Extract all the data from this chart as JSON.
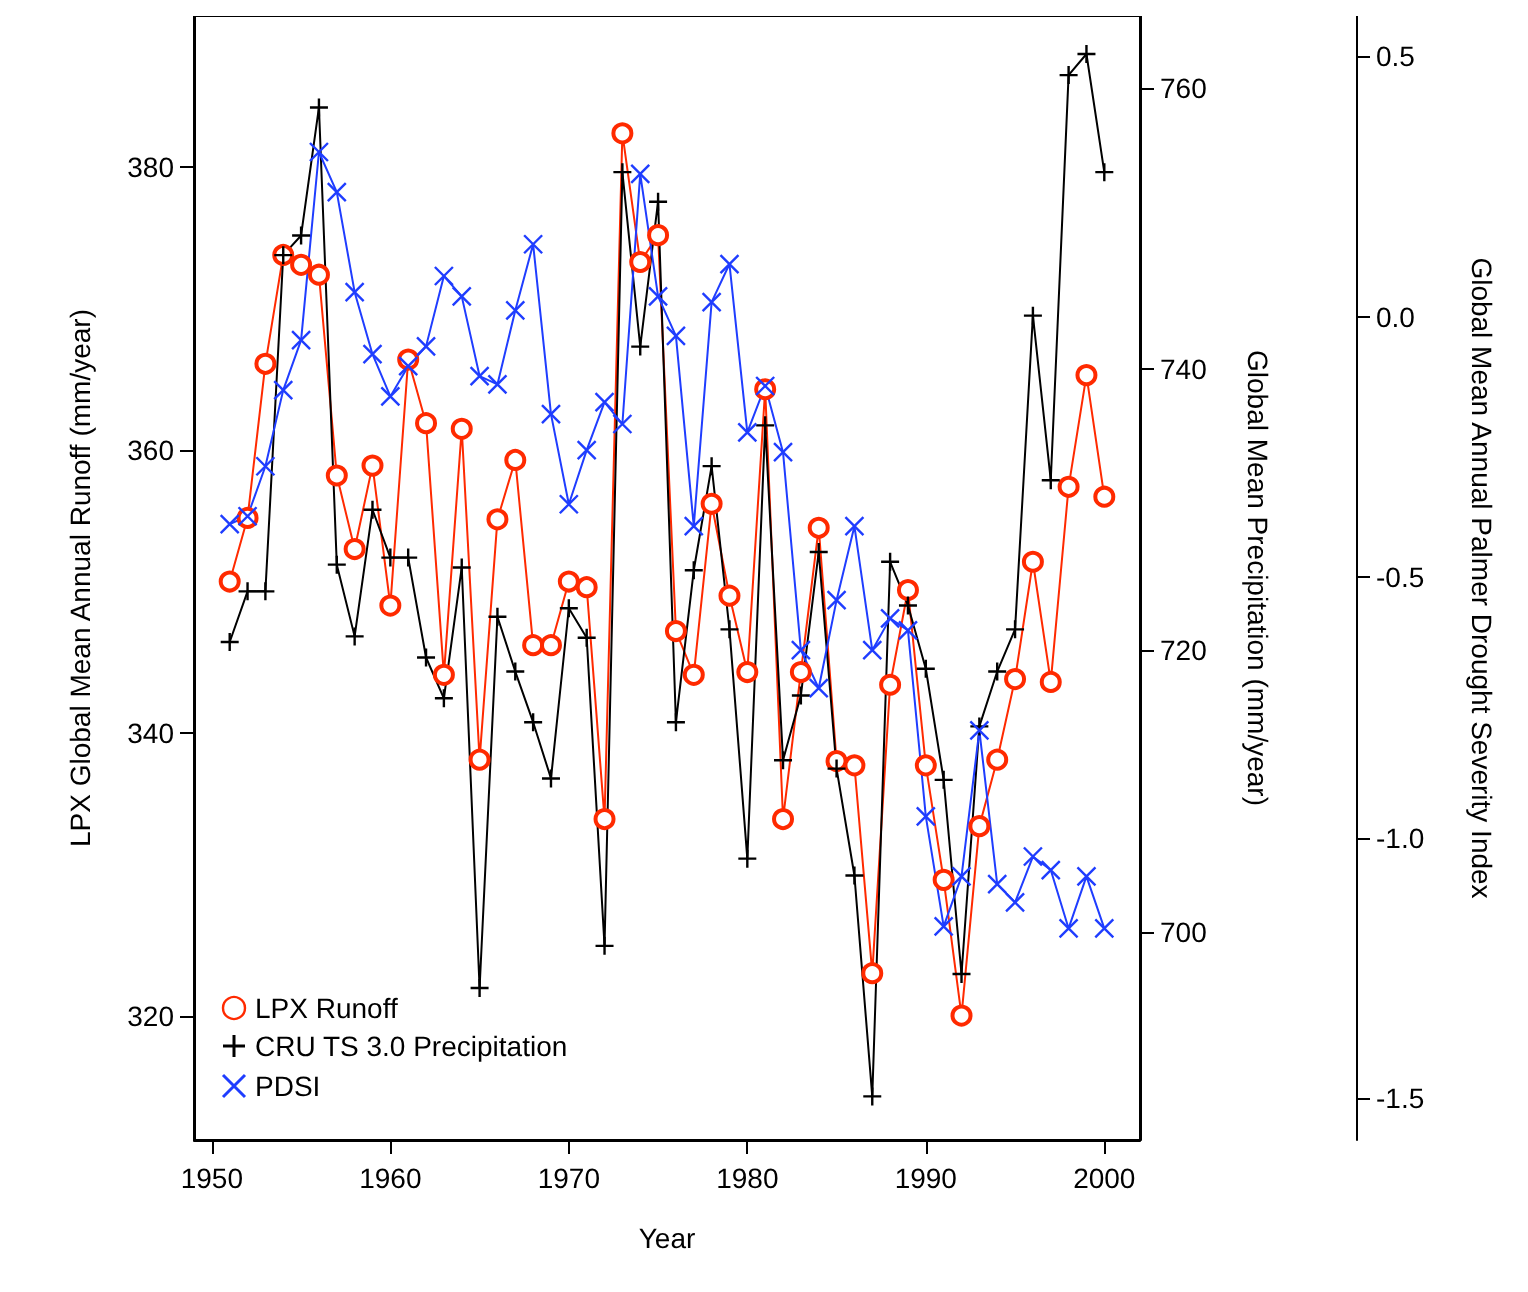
{
  "chart_data": {
    "type": "line",
    "xlabel": "Year",
    "ylabel": "LPX Global Mean Annual Runoff (mm/year)",
    "y2label": "Global Mean Precipitation (mm/year)",
    "y3label": "Global Mean Annual Palmer Drought Severity Index",
    "x": [
      1951,
      1952,
      1953,
      1954,
      1955,
      1956,
      1957,
      1958,
      1959,
      1960,
      1961,
      1962,
      1963,
      1964,
      1965,
      1966,
      1967,
      1968,
      1969,
      1970,
      1971,
      1972,
      1973,
      1974,
      1975,
      1976,
      1977,
      1978,
      1979,
      1980,
      1981,
      1982,
      1983,
      1984,
      1985,
      1986,
      1987,
      1988,
      1989,
      1990,
      1991,
      1992,
      1993,
      1994,
      1995,
      1996,
      1997,
      1998,
      1999,
      2000
    ],
    "xlim": [
      1949,
      2002
    ],
    "xticks": [
      1950,
      1960,
      1970,
      1980,
      1990,
      2000
    ],
    "ylim": [
      311.2,
      390.7
    ],
    "yticks": [
      320,
      340,
      360,
      380
    ],
    "y2lim": [
      685.2,
      765.1
    ],
    "y2ticks": [
      700,
      720,
      740,
      760
    ],
    "y3lim": [
      -1.58,
      0.577
    ],
    "y3ticks": [
      {
        "value": -1.5,
        "label": "-1.5"
      },
      {
        "value": -1,
        "label": "-1.0"
      },
      {
        "value": -0.5,
        "label": "-0.5"
      },
      {
        "value": 0,
        "label": "0.0"
      },
      {
        "value": 0.5,
        "label": "0.5"
      }
    ],
    "grid": false,
    "legend": "bottom left",
    "series": [
      {
        "name": "LPX Runoff",
        "color": "#ff2a00",
        "marker": "circle",
        "axis": "y",
        "values": [
          350.7,
          355.2,
          366.1,
          373.8,
          373.1,
          372.4,
          358.2,
          353.0,
          358.9,
          349.0,
          366.4,
          361.9,
          344.1,
          361.5,
          338.1,
          355.1,
          359.3,
          346.2,
          346.2,
          350.7,
          350.3,
          333.9,
          382.4,
          373.3,
          375.2,
          347.2,
          344.1,
          356.2,
          349.7,
          344.3,
          364.3,
          333.9,
          344.3,
          354.5,
          338.0,
          337.7,
          323.0,
          343.4,
          350.1,
          337.7,
          329.6,
          320.0,
          333.4,
          338.1,
          343.8,
          352.1,
          343.6,
          357.4,
          365.3,
          356.7
        ]
      },
      {
        "name": "CRU TS 3.0 Precipitation",
        "color": "#000000",
        "marker": "plus",
        "axis": "y2",
        "values": [
          720.6,
          724.2,
          724.2,
          748.1,
          749.5,
          758.6,
          726.1,
          721.0,
          730.0,
          726.6,
          726.6,
          719.5,
          716.6,
          725.9,
          696.0,
          722.4,
          718.5,
          714.9,
          710.9,
          723.0,
          720.9,
          699.0,
          754.0,
          741.6,
          751.9,
          714.9,
          725.7,
          733.1,
          721.5,
          705.2,
          736.0,
          712.2,
          716.8,
          727.0,
          711.6,
          704.0,
          688.3,
          726.3,
          723.2,
          718.7,
          710.8,
          697.0,
          714.6,
          718.5,
          721.5,
          743.8,
          732.1,
          760.9,
          762.4,
          754.0
        ]
      },
      {
        "name": "PDSI",
        "color": "#1f3dff",
        "marker": "cross",
        "axis": "y3",
        "values": [
          -0.398,
          -0.383,
          -0.287,
          -0.141,
          -0.045,
          0.316,
          0.239,
          0.047,
          -0.072,
          -0.153,
          -0.095,
          -0.057,
          0.078,
          0.039,
          -0.114,
          -0.13,
          0.012,
          0.139,
          -0.187,
          -0.36,
          -0.256,
          -0.164,
          -0.206,
          0.274,
          0.039,
          -0.037,
          -0.402,
          0.028,
          0.101,
          -0.222,
          -0.133,
          -0.26,
          -0.64,
          -0.713,
          -0.544,
          -0.402,
          -0.64,
          -0.579,
          -0.602,
          -0.959,
          -1.17,
          -1.074,
          -0.794,
          -1.089,
          -1.124,
          -1.036,
          -1.062,
          -1.174,
          -1.074,
          -1.174
        ]
      }
    ]
  }
}
